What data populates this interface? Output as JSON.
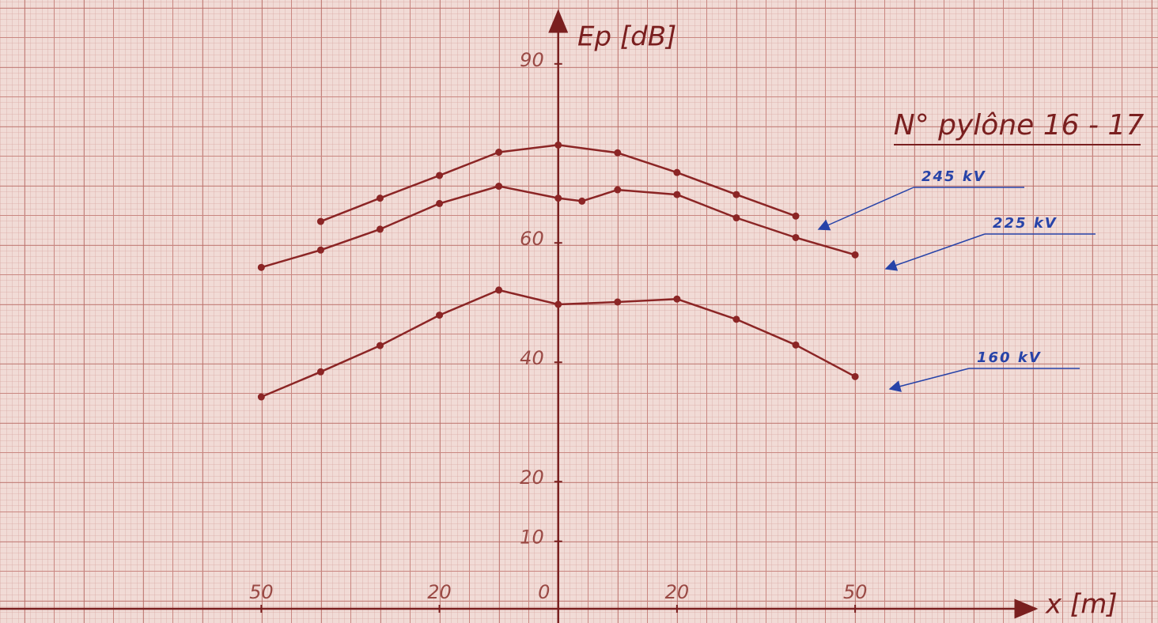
{
  "chart_data": {
    "type": "line",
    "title": "N° pylône 16 - 17",
    "x_label": "x [m]",
    "y_label": "Ep [dB]",
    "xlim": [
      -94,
      101
    ],
    "ylim": [
      -1.3,
      100.7
    ],
    "xticks": [
      {
        "value": -50,
        "label": "50"
      },
      {
        "value": -20,
        "label": "20"
      },
      0,
      20,
      50
    ],
    "yticks": [
      10,
      20,
      40,
      60,
      90
    ],
    "series": [
      {
        "name": "245 kV",
        "color": "#8b2525",
        "x": [
          -40,
          -30,
          -20,
          -10,
          0,
          10,
          20,
          30,
          40
        ],
        "values": [
          63.6,
          67.5,
          71.3,
          75.2,
          76.4,
          75.1,
          71.8,
          68.1,
          64.5
        ]
      },
      {
        "name": "225 kV",
        "color": "#8b2525",
        "x": [
          -50,
          -40,
          -30,
          -20,
          -10,
          0,
          4,
          10,
          20,
          30,
          40,
          50
        ],
        "values": [
          55.9,
          58.8,
          62.3,
          66.6,
          69.5,
          67.5,
          67.0,
          68.9,
          68.1,
          64.2,
          60.9,
          58.0
        ]
      },
      {
        "name": "160 kV",
        "color": "#8b2525",
        "x": [
          -50,
          -40,
          -30,
          -20,
          -10,
          0,
          10,
          20,
          30,
          40,
          50
        ],
        "values": [
          34.2,
          38.4,
          42.8,
          47.9,
          52.1,
          49.7,
          50.1,
          50.6,
          47.2,
          42.9,
          37.6
        ]
      }
    ]
  }
}
